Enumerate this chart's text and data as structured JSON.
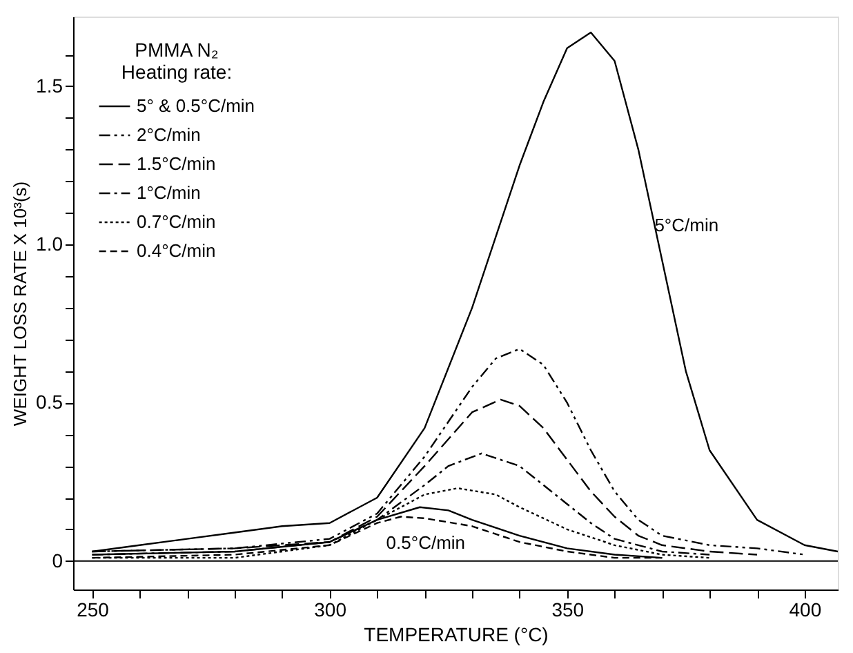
{
  "chart_data": {
    "type": "line",
    "xlabel": "TEMPERATURE (°C)",
    "ylabel": "WEIGHT LOSS RATE X 10³(s)",
    "legend_title": [
      "PMMA N₂",
      "Heating rate:"
    ],
    "legend": "top left",
    "grid": false,
    "marker": "none",
    "xlim": [
      246,
      407
    ],
    "ylim": [
      -0.09,
      1.72
    ],
    "xticks": [
      250,
      {
        "value": 260,
        "label": null
      },
      {
        "value": 270,
        "label": null
      },
      {
        "value": 280,
        "label": null
      },
      {
        "value": 290,
        "label": null
      },
      300,
      {
        "value": 310,
        "label": null
      },
      {
        "value": 320,
        "label": null
      },
      {
        "value": 330,
        "label": null
      },
      {
        "value": 340,
        "label": null
      },
      350,
      {
        "value": 360,
        "label": null
      },
      {
        "value": 370,
        "label": null
      },
      {
        "value": 380,
        "label": null
      },
      {
        "value": 390,
        "label": null
      },
      400
    ],
    "yticks": [
      {
        "value": 0,
        "label": "0"
      },
      {
        "value": 0.1,
        "label": null
      },
      {
        "value": 0.2,
        "label": null
      },
      {
        "value": 0.3,
        "label": null
      },
      {
        "value": 0.4,
        "label": null
      },
      {
        "value": 0.5,
        "label": "0.5"
      },
      {
        "value": 0.6,
        "label": null
      },
      {
        "value": 0.7,
        "label": null
      },
      {
        "value": 0.8,
        "label": null
      },
      {
        "value": 0.9,
        "label": null
      },
      {
        "value": 1.0,
        "label": "1.0"
      },
      {
        "value": 1.1,
        "label": null
      },
      {
        "value": 1.2,
        "label": null
      },
      {
        "value": 1.3,
        "label": null
      },
      {
        "value": 1.4,
        "label": null
      },
      {
        "value": 1.5,
        "label": "1.5"
      },
      {
        "value": 1.6,
        "label": null
      }
    ],
    "ref_lines": [
      {
        "axis": "y",
        "value": 0,
        "color": "#000000",
        "line_style": "solid"
      }
    ],
    "annotations": [
      "5°C/min",
      "0.5°C/min"
    ],
    "series": [
      {
        "name": "5° & 0.5°C/min",
        "color": "#000000",
        "line_style": "solid",
        "x": [
          250,
          260,
          270,
          280,
          290,
          300,
          310,
          320,
          330,
          340,
          345,
          350,
          355,
          360,
          365,
          370,
          375,
          380,
          390,
          400,
          407
        ],
        "values": [
          0.03,
          0.05,
          0.07,
          0.09,
          0.11,
          0.12,
          0.2,
          0.42,
          0.8,
          1.25,
          1.45,
          1.62,
          1.67,
          1.58,
          1.3,
          0.95,
          0.6,
          0.35,
          0.13,
          0.05,
          0.03
        ]
      },
      {
        "name": "2°C/min",
        "color": "#000000",
        "line_style": "dashdotdot",
        "x": [
          250,
          280,
          300,
          310,
          320,
          330,
          335,
          340,
          345,
          350,
          355,
          360,
          365,
          370,
          380,
          390,
          400
        ],
        "values": [
          0.03,
          0.04,
          0.07,
          0.15,
          0.33,
          0.55,
          0.64,
          0.67,
          0.62,
          0.5,
          0.35,
          0.22,
          0.13,
          0.08,
          0.05,
          0.04,
          0.02
        ]
      },
      {
        "name": "1.5°C/min",
        "color": "#000000",
        "line_style": "longdash",
        "x": [
          250,
          280,
          300,
          310,
          320,
          330,
          336,
          340,
          345,
          350,
          355,
          360,
          365,
          370,
          380,
          390
        ],
        "values": [
          0.03,
          0.04,
          0.06,
          0.14,
          0.3,
          0.47,
          0.51,
          0.49,
          0.42,
          0.32,
          0.22,
          0.14,
          0.08,
          0.05,
          0.03,
          0.02
        ]
      },
      {
        "name": "1°C/min",
        "color": "#000000",
        "line_style": "dashdot",
        "x": [
          250,
          280,
          300,
          310,
          320,
          325,
          332,
          340,
          345,
          350,
          355,
          360,
          370,
          380
        ],
        "values": [
          0.02,
          0.03,
          0.06,
          0.13,
          0.24,
          0.3,
          0.34,
          0.3,
          0.24,
          0.18,
          0.12,
          0.07,
          0.03,
          0.02
        ]
      },
      {
        "name": "0.7°C/min",
        "color": "#000000",
        "line_style": "dotted",
        "x": [
          250,
          280,
          300,
          310,
          320,
          327,
          335,
          340,
          350,
          360,
          370,
          380
        ],
        "values": [
          0.01,
          0.01,
          0.05,
          0.13,
          0.21,
          0.23,
          0.21,
          0.17,
          0.1,
          0.05,
          0.02,
          0.01
        ]
      },
      {
        "name": "0.4°C/min",
        "color": "#000000",
        "line_style": "dashed",
        "x": [
          250,
          280,
          300,
          310,
          315,
          320,
          330,
          340,
          350,
          360,
          370
        ],
        "values": [
          0.01,
          0.02,
          0.05,
          0.12,
          0.14,
          0.135,
          0.11,
          0.06,
          0.03,
          0.01,
          0.01
        ]
      },
      {
        "color": "#000000",
        "line_style": "solid",
        "x": [
          250,
          280,
          300,
          310,
          319,
          325,
          330,
          340,
          350,
          360,
          370
        ],
        "values": [
          0.02,
          0.03,
          0.06,
          0.13,
          0.17,
          0.16,
          0.13,
          0.08,
          0.04,
          0.02,
          0.01
        ]
      }
    ]
  }
}
